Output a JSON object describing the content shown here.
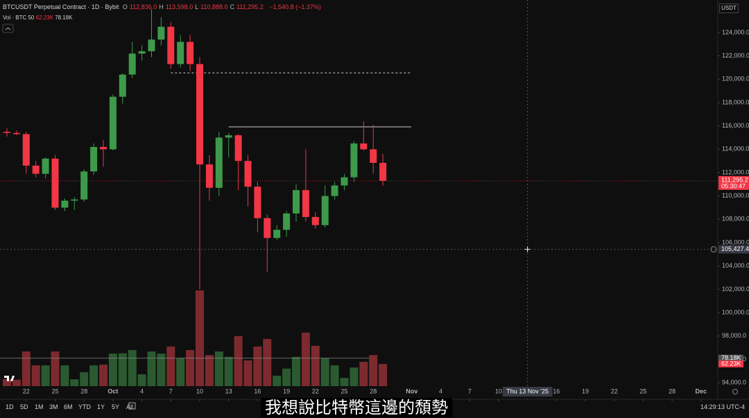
{
  "chart_data": {
    "type": "candlestick",
    "header": {
      "symbol": "BTCUSDT Perpetual Contract · 1D · Bybit",
      "ohlc": [
        [
          "O",
          "112,836.0"
        ],
        [
          "H",
          "113,598.0"
        ],
        [
          "L",
          "110,888.0"
        ],
        [
          "C",
          "111,295.2"
        ]
      ],
      "change": "−1,540.8 (−1.37%)"
    },
    "volume_legend": {
      "label": "Vol · BTC 50",
      "last": {
        "value": 62230,
        "label": "62.23K"
      },
      "ma": {
        "value": 78180,
        "label": "78.18K"
      }
    },
    "currency": "USDT",
    "up_color": "#3d9a4a",
    "down_color": "#f23645",
    "vol_up_color": "#2b5a30",
    "vol_down_color": "#7d2a2e",
    "open": [
      115500,
      115400,
      115300,
      112600,
      111900,
      113200,
      109000,
      109600,
      109700,
      112100,
      114200,
      114000,
      118500,
      120400,
      122200,
      122400,
      123400,
      124500,
      121300,
      123200,
      121300,
      112700,
      110700,
      115000,
      115200,
      113000,
      110800,
      108100,
      106400,
      107100,
      108500,
      110500,
      108200,
      107500,
      110000,
      110900,
      111600,
      114500,
      114000,
      112836
    ],
    "high": [
      115800,
      115600,
      115500,
      113000,
      113300,
      113500,
      109800,
      109900,
      112300,
      114500,
      114800,
      118700,
      120500,
      123200,
      122900,
      126000,
      125300,
      124900,
      123800,
      123800,
      121900,
      113500,
      115500,
      115400,
      115300,
      113500,
      111200,
      108400,
      107500,
      108700,
      111000,
      114000,
      108600,
      110900,
      111200,
      111900,
      114700,
      116400,
      116100,
      113598
    ],
    "low": [
      115100,
      115200,
      111900,
      111600,
      111500,
      108800,
      108700,
      108800,
      109500,
      111800,
      112500,
      113900,
      117900,
      120100,
      121600,
      121900,
      122900,
      120900,
      121000,
      120700,
      102000,
      109600,
      110000,
      113300,
      110500,
      109100,
      106900,
      103500,
      106200,
      106500,
      107800,
      107800,
      107200,
      107300,
      109700,
      110500,
      111200,
      113900,
      111900,
      110888
    ],
    "close": [
      115400,
      115300,
      112600,
      111900,
      113200,
      109000,
      109600,
      109700,
      112100,
      114200,
      114000,
      118500,
      120400,
      122200,
      122400,
      123400,
      124500,
      121300,
      123200,
      121300,
      112700,
      110700,
      115000,
      115200,
      113000,
      110800,
      108100,
      106400,
      107100,
      108500,
      110500,
      108200,
      107500,
      110000,
      110900,
      111600,
      114500,
      114000,
      112836,
      111295.2
    ],
    "volume": [
      20000,
      18000,
      97000,
      58000,
      58000,
      97000,
      58000,
      19000,
      39000,
      58000,
      60000,
      91000,
      92000,
      101000,
      33000,
      97000,
      91000,
      111000,
      78000,
      101000,
      268000,
      87000,
      97000,
      82000,
      140000,
      72000,
      111000,
      132000,
      29000,
      49000,
      82000,
      150000,
      113000,
      78000,
      58000,
      23000,
      52000,
      68000,
      87000,
      62230
    ],
    "ylim": [
      92580,
      126790
    ],
    "yticks": [
      {
        "value": 94000,
        "label": "94,000.0"
      },
      {
        "value": 96000,
        "label": "96,000.0"
      },
      {
        "value": 98000,
        "label": "98,000.0"
      },
      {
        "value": 100000,
        "label": "100,000.0"
      },
      {
        "value": 102000,
        "label": "102,000.0"
      },
      {
        "value": 104000,
        "label": "104,000.0"
      },
      {
        "value": 106000,
        "label": "106,000.0"
      },
      {
        "value": 108000,
        "label": "108,000.0"
      },
      {
        "value": 110000,
        "label": "110,000.0"
      },
      {
        "value": 112000,
        "label": "112,000.0"
      },
      {
        "value": 114000,
        "label": "114,000.0"
      },
      {
        "value": 116000,
        "label": "116,000.0"
      },
      {
        "value": 118000,
        "label": "118,000.0"
      },
      {
        "value": 120000,
        "label": "120,000.0"
      },
      {
        "value": 122000,
        "label": "122,000.0"
      },
      {
        "value": 124000,
        "label": "124,000.0"
      }
    ],
    "xticks": [
      {
        "value": 2,
        "label": "22"
      },
      {
        "value": 5,
        "label": "25"
      },
      {
        "value": 8,
        "label": "28"
      },
      {
        "value": 11,
        "label": "Oct"
      },
      {
        "value": 14,
        "label": "4"
      },
      {
        "value": 17,
        "label": "7"
      },
      {
        "value": 20,
        "label": "10"
      },
      {
        "value": 23,
        "label": "13"
      },
      {
        "value": 26,
        "label": "16"
      },
      {
        "value": 29,
        "label": "19"
      },
      {
        "value": 32,
        "label": "22"
      },
      {
        "value": 35,
        "label": "25"
      },
      {
        "value": 38,
        "label": "28"
      },
      {
        "value": 42,
        "label": "Nov"
      },
      {
        "value": 45,
        "label": "4"
      },
      {
        "value": 48,
        "label": "7"
      },
      {
        "value": 51,
        "label": "10"
      },
      {
        "value": 57,
        "label": "16"
      },
      {
        "value": 60,
        "label": "19"
      },
      {
        "value": 63,
        "label": "22"
      },
      {
        "value": 66,
        "label": "25"
      },
      {
        "value": 69,
        "label": "28"
      },
      {
        "value": 72,
        "label": "Dec"
      }
    ],
    "levels": [
      {
        "value": 120550,
        "from": 17,
        "to": 42,
        "style": "dashed"
      },
      {
        "value": 115920,
        "from": 23,
        "to": 42,
        "style": "solid"
      }
    ],
    "last_price": {
      "value": 111295.2,
      "label": "111,295.2",
      "countdown": "05:30:47"
    },
    "crosshair": {
      "price": {
        "value": 105427.4,
        "label": "105,427.4"
      },
      "x": {
        "value": 54,
        "label": "Thu 13 Nov '25"
      }
    },
    "toolbar": [
      "1D",
      "5D",
      "1M",
      "3M",
      "6M",
      "YTD",
      "1Y",
      "5Y",
      "All"
    ],
    "clock": "14:29:13 UTC-4",
    "subtitle": "我想說比特幣這邊的頹勢"
  }
}
